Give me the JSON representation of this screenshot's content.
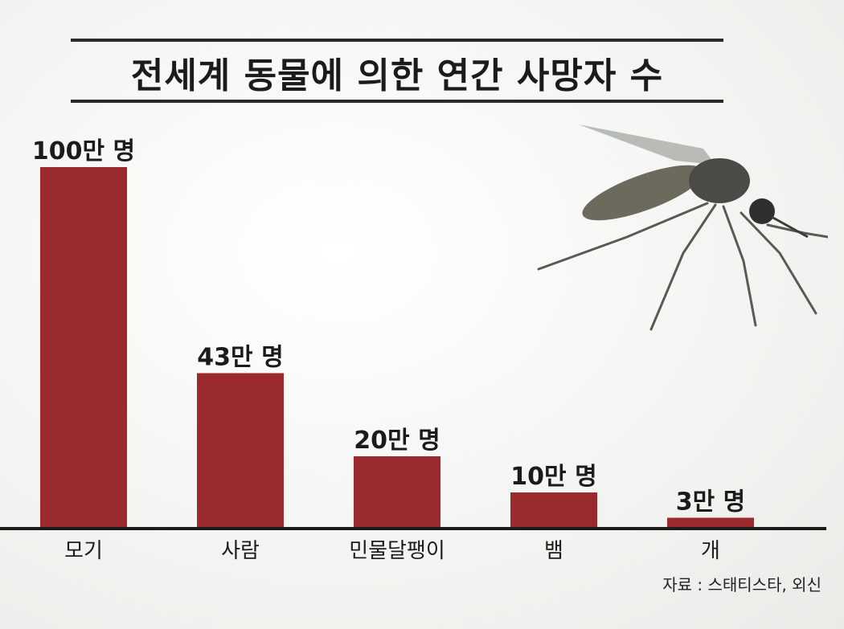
{
  "title": "전세계 동물에 의한 연간 사망자 수",
  "source": "자료 : 스태티스타, 외신",
  "colors": {
    "bar": "#9a2a2e",
    "axis": "#1b1b1b"
  },
  "illustration": "mosquito",
  "chart_data": {
    "type": "bar",
    "title": "전세계 동물에 의한 연간 사망자 수",
    "categories": [
      "모기",
      "사람",
      "민물달팽이",
      "뱀",
      "개"
    ],
    "values": [
      100,
      43,
      20,
      10,
      3
    ],
    "data_labels": [
      "100만 명",
      "43만 명",
      "20만 명",
      "10만 명",
      "3만 명"
    ],
    "unit": "만 명",
    "ylim": [
      0,
      100
    ],
    "grid": false,
    "legend": "none"
  }
}
